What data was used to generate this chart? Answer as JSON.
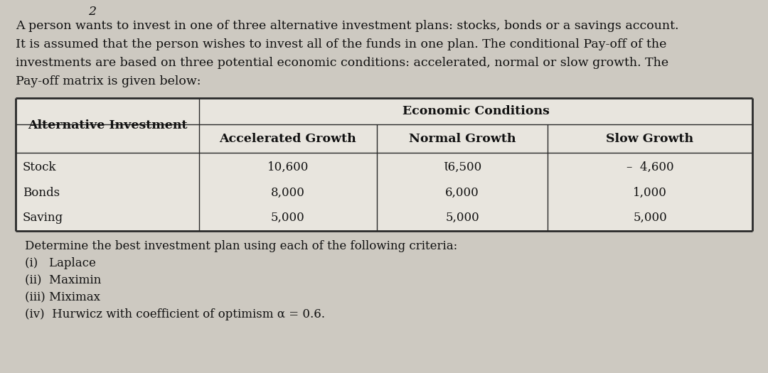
{
  "page_number": "2",
  "intro_lines": [
    "A person wants to invest in one of three alternative investment plans: stocks, bonds or a savings account.",
    "It is assumed that the person wishes to invest all of the funds in one plan. The conditional Pay-off of the",
    "investments are based on three potential economic conditions: accelerated, normal or slow growth. The",
    "Pay-off matrix is given below:"
  ],
  "col_header_left": "Alternative Investment",
  "col_header_center": "Economic Conditions",
  "col_subheader_1": "Accelerated Growth",
  "col_subheader_2": "Normal Growth",
  "col_subheader_3": "Slow Growth",
  "row_labels": [
    "Stock",
    "Bonds",
    "Saving"
  ],
  "data_col1": [
    "10,600",
    "8,000",
    "5,000"
  ],
  "data_col2": [
    "Ɩ6,500",
    "6,000",
    "5,000"
  ],
  "data_col3": [
    "–  4,600",
    "1,000",
    "5,000"
  ],
  "footer_line0": "Determine the best investment plan using each of the following criteria:",
  "footer_items": [
    "(i)   Laplace",
    "(ii)  Maximin",
    "(iii) Miximax",
    "(iv)  Hurwicz with coefficient of optimism α = 0.6."
  ],
  "bg_color": "#cdc9c1",
  "table_bg": "#e8e5de",
  "text_color": "#111111",
  "font_size_intro": 12.5,
  "font_size_table_header": 12.5,
  "font_size_table_data": 12.0,
  "font_size_footer": 12.0
}
